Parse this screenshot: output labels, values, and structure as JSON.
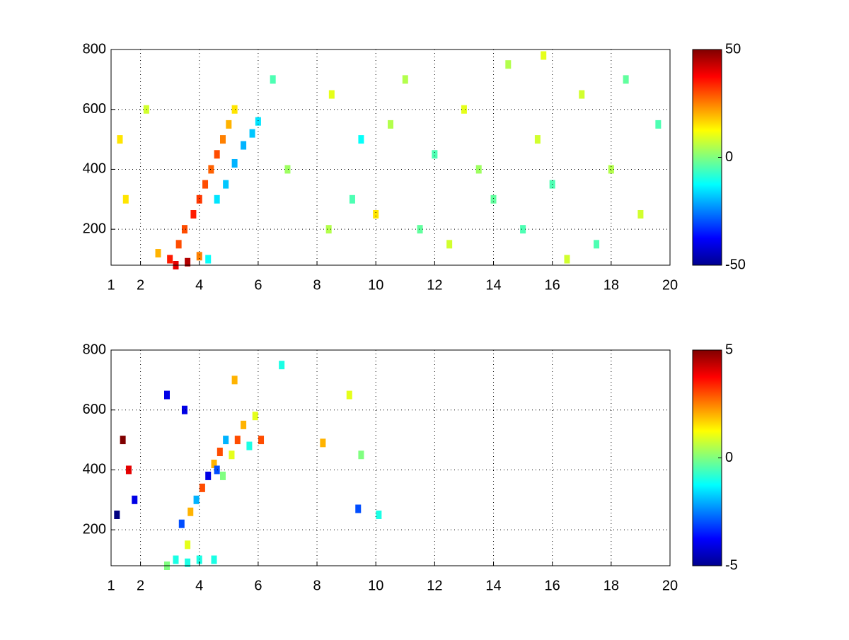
{
  "chart_data": [
    {
      "type": "heatmap",
      "colormap": "jet",
      "grid": true,
      "xlim": [
        1,
        20
      ],
      "xticks": [
        1,
        2,
        4,
        6,
        8,
        10,
        12,
        14,
        16,
        18,
        20
      ],
      "ylim": [
        80,
        800
      ],
      "yticks": [
        200,
        400,
        600,
        800
      ],
      "clim": [
        -50,
        50
      ],
      "cticks": [
        -50,
        0,
        50
      ],
      "x": [
        3.0,
        3.3,
        3.6,
        3.5,
        3.8,
        4.0,
        4.2,
        4.4,
        4.6,
        4.8,
        5.0,
        5.2,
        2.6,
        4.0,
        3.2,
        4.6,
        4.9,
        5.2,
        5.5,
        5.8,
        6.0,
        4.3,
        1.3,
        1.5,
        2.2,
        6.5,
        7,
        8.4,
        8.5,
        9.2,
        9.5,
        10,
        11,
        12,
        12.5,
        13,
        14,
        14.5,
        15,
        15.5,
        15.7,
        16,
        17,
        17.5,
        18,
        18.5,
        19,
        19.6,
        13.5,
        11.5,
        10.5,
        16.5
      ],
      "y": [
        100,
        150,
        90,
        200,
        250,
        300,
        350,
        400,
        450,
        500,
        550,
        600,
        120,
        110,
        80,
        300,
        350,
        420,
        480,
        520,
        560,
        100,
        500,
        300,
        600,
        700,
        400,
        200,
        650,
        300,
        500,
        250,
        700,
        450,
        150,
        600,
        300,
        750,
        200,
        500,
        780,
        350,
        650,
        150,
        400,
        700,
        250,
        550,
        400,
        200,
        550,
        100
      ],
      "values": [
        35,
        30,
        45,
        30,
        35,
        32,
        30,
        28,
        30,
        25,
        20,
        15,
        20,
        25,
        40,
        -15,
        -18,
        -20,
        -20,
        -18,
        -15,
        -12,
        15,
        15,
        8,
        -5,
        3,
        5,
        10,
        -5,
        -12,
        15,
        5,
        -5,
        8,
        10,
        -3,
        5,
        -5,
        8,
        10,
        -5,
        8,
        -5,
        5,
        -3,
        8,
        -5,
        3,
        -3,
        5,
        8
      ]
    },
    {
      "type": "heatmap",
      "colormap": "jet",
      "grid": true,
      "xlim": [
        1,
        20
      ],
      "xticks": [
        1,
        2,
        4,
        6,
        8,
        10,
        12,
        14,
        16,
        18,
        20
      ],
      "ylim": [
        80,
        800
      ],
      "yticks": [
        200,
        400,
        600,
        800
      ],
      "clim": [
        -5,
        5
      ],
      "cticks": [
        -5,
        0,
        5
      ],
      "x": [
        2.9,
        3.2,
        3.6,
        4.0,
        4.5,
        3.6,
        3.4,
        3.7,
        3.9,
        4.1,
        4.3,
        4.5,
        4.7,
        4.9,
        5.1,
        5.3,
        5.5,
        5.7,
        5.9,
        4.6,
        4.8,
        5.2,
        6.1,
        1.2,
        1.4,
        1.6,
        1.8,
        3.5,
        2.9,
        8.2,
        9.1,
        9.5,
        10.1,
        6.8,
        9.4
      ],
      "y": [
        80,
        100,
        90,
        100,
        100,
        150,
        220,
        260,
        300,
        340,
        380,
        420,
        460,
        500,
        450,
        500,
        550,
        480,
        580,
        400,
        380,
        700,
        500,
        250,
        500,
        400,
        300,
        600,
        650,
        490,
        650,
        450,
        250,
        750,
        270
      ],
      "values": [
        0,
        -1,
        -1,
        -1,
        -1,
        1,
        -3,
        2,
        -2,
        3,
        -4,
        2,
        3,
        -2,
        1,
        3,
        2,
        -1,
        1,
        -3,
        0,
        2,
        3,
        -5,
        5,
        4,
        -4,
        -4,
        -4,
        2,
        1,
        0,
        -1,
        -1,
        -3
      ]
    }
  ]
}
